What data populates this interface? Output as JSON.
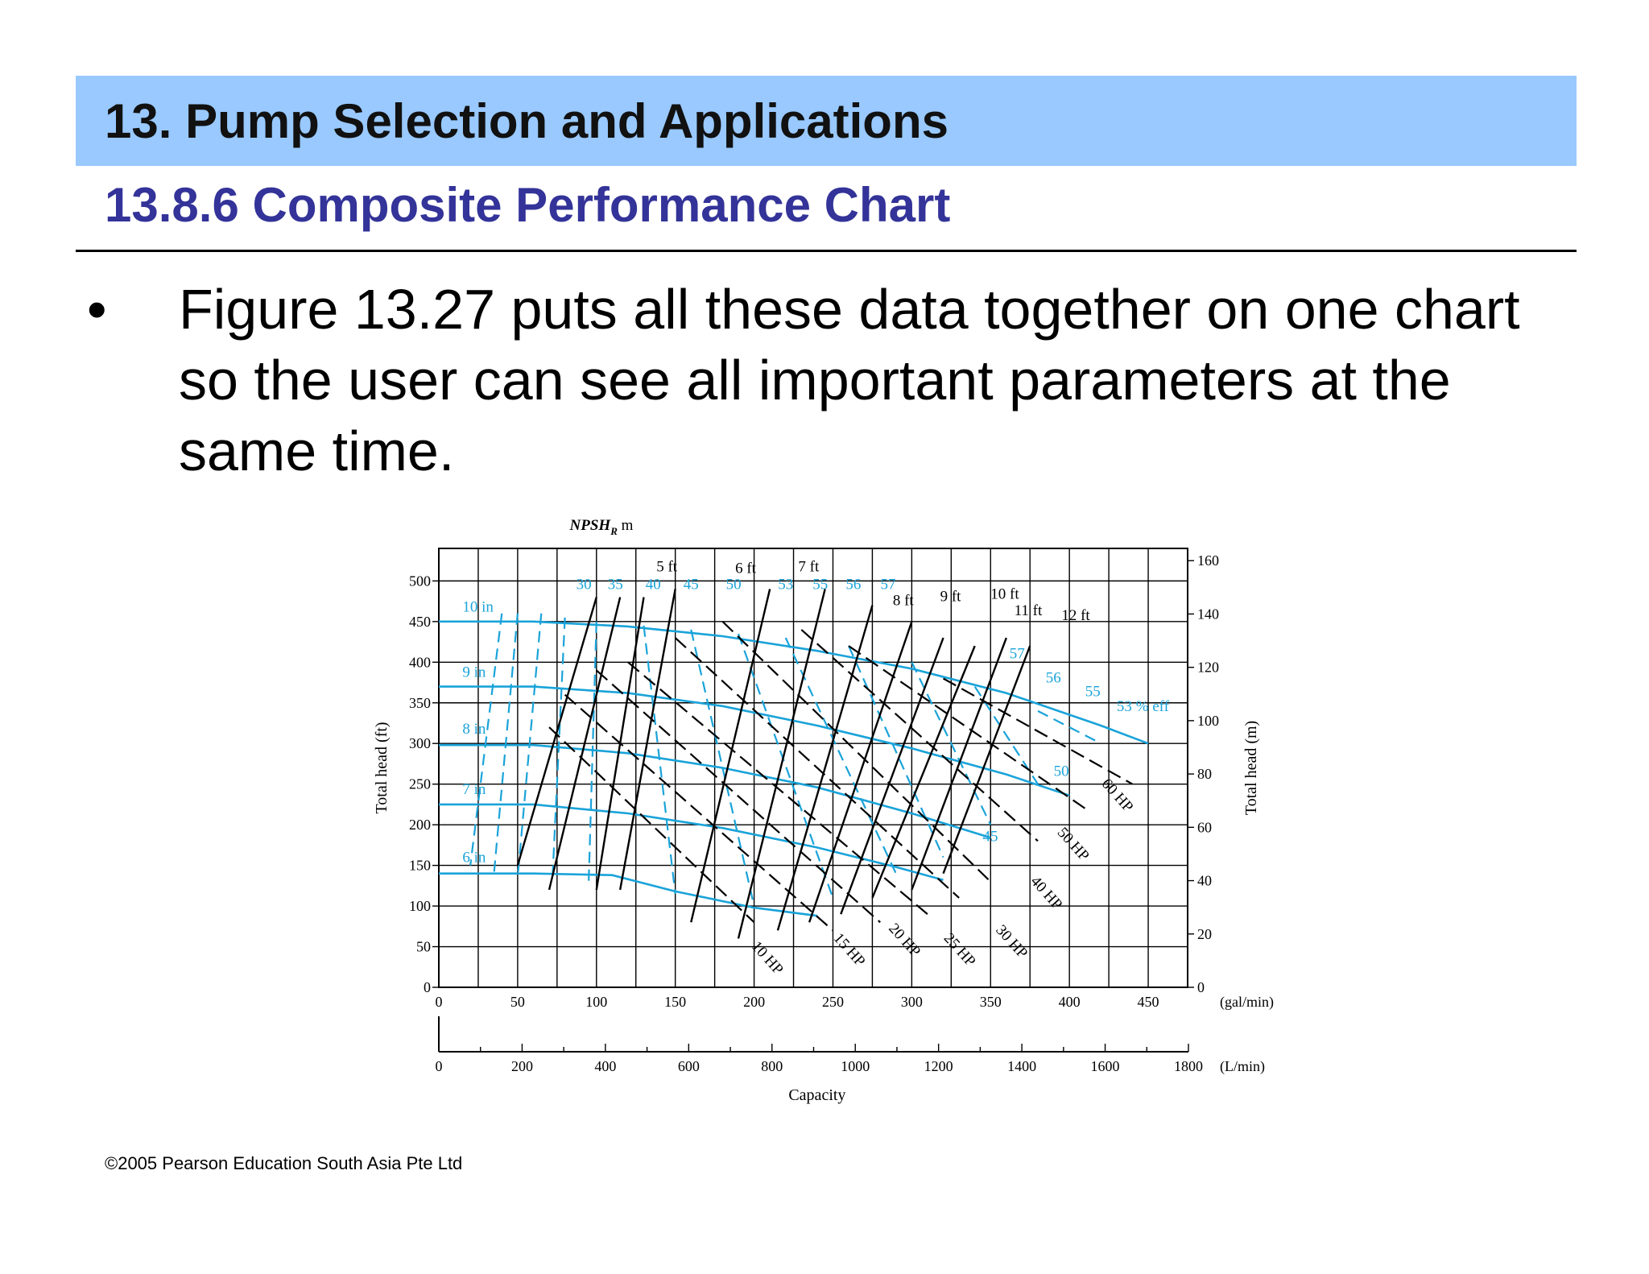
{
  "slide": {
    "title": "13. Pump Selection and Applications",
    "subtitle": "13.8.6 Composite Performance Chart",
    "bullet_symbol": "•",
    "body": "Figure 13.27 puts all these data together on one chart so the user can see all important parameters at the same time.",
    "copyright": "©2005 Pearson Education South Asia Pte Ltd"
  },
  "colors": {
    "header_band": "#99c9ff",
    "subtitle": "#333399",
    "chart_cyan": "#1aa3d9",
    "chart_black": "#000000"
  },
  "chart_data": {
    "type": "line",
    "xlabel": "Capacity",
    "ylabel_left": "Total head (ft)",
    "ylabel_right": "Total head (m)",
    "npsh_label": "NPSH",
    "npsh_subscript": "R",
    "npsh_unit": "m",
    "x_unit_gal": "(gal/min)",
    "x_unit_lmin": "(L/min)",
    "xlim_gal": [
      0,
      475
    ],
    "xlim_lmin": [
      0,
      1800
    ],
    "ylim_ft": [
      0,
      540
    ],
    "ylim_m": [
      0,
      164.6
    ],
    "x_ticks_gal": [
      0,
      50,
      100,
      150,
      200,
      250,
      300,
      350,
      400,
      450
    ],
    "x_ticks_lmin": [
      0,
      200,
      400,
      600,
      800,
      1000,
      1200,
      1400,
      1600,
      1800
    ],
    "y_ticks_ft": [
      0,
      50,
      100,
      150,
      200,
      250,
      300,
      350,
      400,
      450,
      500
    ],
    "y_ticks_m": [
      0,
      20,
      40,
      60,
      80,
      100,
      120,
      140,
      160
    ],
    "grid": true,
    "impellers": [
      {
        "label": "10 in",
        "points": [
          [
            0,
            450
          ],
          [
            60,
            450
          ],
          [
            120,
            444
          ],
          [
            180,
            432
          ],
          [
            240,
            414
          ],
          [
            300,
            392
          ],
          [
            360,
            362
          ],
          [
            420,
            322
          ],
          [
            450,
            300
          ]
        ]
      },
      {
        "label": "9 in",
        "points": [
          [
            0,
            370
          ],
          [
            60,
            370
          ],
          [
            120,
            362
          ],
          [
            180,
            346
          ],
          [
            240,
            322
          ],
          [
            300,
            294
          ],
          [
            360,
            262
          ],
          [
            400,
            236
          ]
        ]
      },
      {
        "label": "8 in",
        "points": [
          [
            0,
            298
          ],
          [
            60,
            298
          ],
          [
            120,
            288
          ],
          [
            180,
            270
          ],
          [
            240,
            246
          ],
          [
            300,
            214
          ],
          [
            350,
            184
          ]
        ]
      },
      {
        "label": "7 in",
        "points": [
          [
            0,
            225
          ],
          [
            60,
            225
          ],
          [
            120,
            214
          ],
          [
            180,
            196
          ],
          [
            240,
            172
          ],
          [
            290,
            148
          ],
          [
            320,
            132
          ]
        ]
      },
      {
        "label": "6 in",
        "points": [
          [
            0,
            140
          ],
          [
            60,
            140
          ],
          [
            110,
            138
          ],
          [
            150,
            118
          ],
          [
            200,
            98
          ],
          [
            240,
            88
          ]
        ]
      }
    ],
    "efficiency_labels_top": [
      "30",
      "35",
      "40",
      "45",
      "50",
      "53",
      "55",
      "56",
      "57"
    ],
    "efficiency_labels_right": [
      "57",
      "56",
      "55",
      "53 % eff",
      "50",
      "45"
    ],
    "npsh_labels": [
      "5 ft",
      "6 ft",
      "7 ft",
      "8 ft",
      "9 ft",
      "10 ft",
      "11 ft",
      "12 ft"
    ],
    "power_labels": [
      "10 HP",
      "15 HP",
      "20 HP",
      "25 HP",
      "30 HP",
      "40 HP",
      "50 HP",
      "60 HP"
    ]
  }
}
